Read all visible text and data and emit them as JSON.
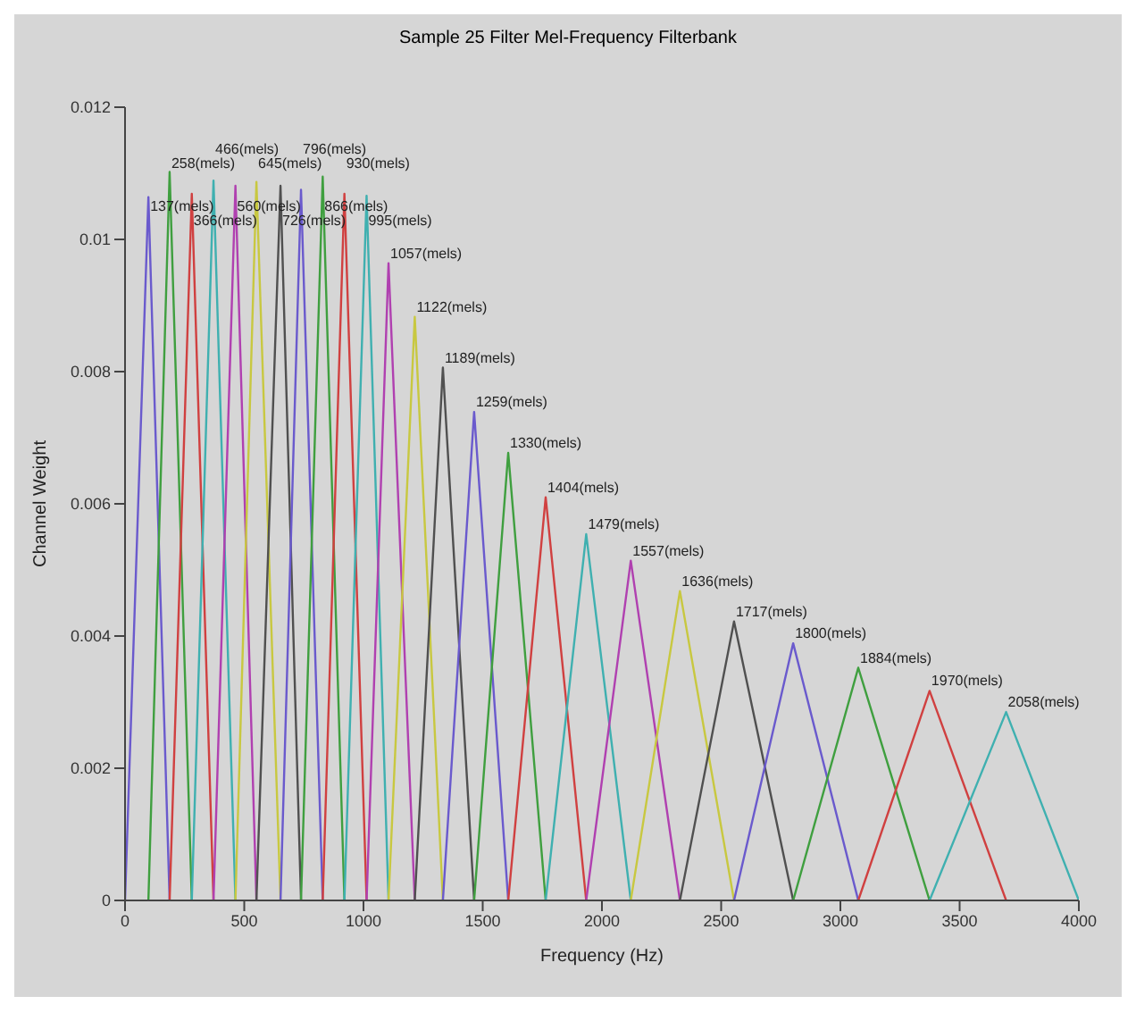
{
  "chart_data": {
    "type": "line",
    "title": "Sample 25 Filter Mel-Frequency Filterbank",
    "xlabel": "Frequency (Hz)",
    "ylabel": "Channel Weight",
    "xlim": [
      0,
      4000
    ],
    "xticks": [
      0,
      500,
      1000,
      1500,
      2000,
      2500,
      3000,
      3500,
      4000
    ],
    "ylim": [
      0,
      0.012
    ],
    "yticks": [
      0,
      0.002,
      0.004,
      0.006,
      0.008,
      0.01,
      0.012
    ],
    "series": [
      {
        "color": "#6a5acd",
        "x": [
          0,
          98,
          187
        ],
        "values": [
          0,
          0.01064,
          0
        ]
      },
      {
        "color": "#3f9f3f",
        "x": [
          98,
          187,
          280
        ],
        "values": [
          0,
          0.01102,
          0
        ]
      },
      {
        "color": "#d04040",
        "x": [
          187,
          280,
          371
        ],
        "values": [
          0,
          0.01069,
          0
        ]
      },
      {
        "color": "#3fb0b0",
        "x": [
          280,
          371,
          463
        ],
        "values": [
          0,
          0.01089,
          0
        ]
      },
      {
        "color": "#b040b0",
        "x": [
          371,
          463,
          551
        ],
        "values": [
          0,
          0.01081,
          0
        ]
      },
      {
        "color": "#c8c840",
        "x": [
          463,
          551,
          652
        ],
        "values": [
          0,
          0.01087,
          0
        ]
      },
      {
        "color": "#505050",
        "x": [
          551,
          652,
          738
        ],
        "values": [
          0,
          0.01081,
          0
        ]
      },
      {
        "color": "#6a5acd",
        "x": [
          652,
          738,
          829
        ],
        "values": [
          0,
          0.01075,
          0
        ]
      },
      {
        "color": "#3f9f3f",
        "x": [
          738,
          829,
          920
        ],
        "values": [
          0,
          0.01095,
          0
        ]
      },
      {
        "color": "#d04040",
        "x": [
          829,
          920,
          1013
        ],
        "values": [
          0,
          0.01069,
          0
        ]
      },
      {
        "color": "#3fb0b0",
        "x": [
          920,
          1013,
          1105
        ],
        "values": [
          0,
          0.01066,
          0
        ]
      },
      {
        "color": "#b040b0",
        "x": [
          1013,
          1105,
          1215
        ],
        "values": [
          0,
          0.00964,
          0
        ]
      },
      {
        "color": "#c8c840",
        "x": [
          1105,
          1215,
          1333
        ],
        "values": [
          0,
          0.00883,
          0
        ]
      },
      {
        "color": "#505050",
        "x": [
          1215,
          1333,
          1464
        ],
        "values": [
          0,
          0.00806,
          0
        ]
      },
      {
        "color": "#6a5acd",
        "x": [
          1333,
          1464,
          1607
        ],
        "values": [
          0,
          0.00739,
          0
        ]
      },
      {
        "color": "#3f9f3f",
        "x": [
          1464,
          1607,
          1764
        ],
        "values": [
          0,
          0.00677,
          0
        ]
      },
      {
        "color": "#d04040",
        "x": [
          1607,
          1764,
          1934
        ],
        "values": [
          0,
          0.0061,
          0
        ]
      },
      {
        "color": "#3fb0b0",
        "x": [
          1764,
          1934,
          2121
        ],
        "values": [
          0,
          0.00554,
          0
        ]
      },
      {
        "color": "#b040b0",
        "x": [
          1934,
          2121,
          2327
        ],
        "values": [
          0,
          0.00514,
          0
        ]
      },
      {
        "color": "#c8c840",
        "x": [
          2121,
          2327,
          2554
        ],
        "values": [
          0,
          0.00468,
          0
        ]
      },
      {
        "color": "#505050",
        "x": [
          2327,
          2554,
          2802
        ],
        "values": [
          0,
          0.00422,
          0
        ]
      },
      {
        "color": "#6a5acd",
        "x": [
          2554,
          2802,
          3075
        ],
        "values": [
          0,
          0.00389,
          0
        ]
      },
      {
        "color": "#3f9f3f",
        "x": [
          2802,
          3075,
          3374
        ],
        "values": [
          0,
          0.00352,
          0
        ]
      },
      {
        "color": "#d04040",
        "x": [
          3075,
          3374,
          3695
        ],
        "values": [
          0,
          0.00317,
          0
        ]
      },
      {
        "color": "#3fb0b0",
        "x": [
          3374,
          3695,
          4000
        ],
        "values": [
          0,
          0.00285,
          0
        ]
      }
    ],
    "annotations": [
      {
        "text": "137(mels)",
        "x": 98,
        "y": 0.01064
      },
      {
        "text": "258(mels)",
        "x": 187,
        "y": 0.01102
      },
      {
        "text": "366(mels)",
        "x": 280,
        "y": 0.01069
      },
      {
        "text": "466(mels)",
        "x": 371,
        "y": 0.01089
      },
      {
        "text": "560(mels)",
        "x": 463,
        "y": 0.01081
      },
      {
        "text": "645(mels)",
        "x": 551,
        "y": 0.01087
      },
      {
        "text": "726(mels)",
        "x": 652,
        "y": 0.01081
      },
      {
        "text": "796(mels)",
        "x": 738,
        "y": 0.01075
      },
      {
        "text": "866(mels)",
        "x": 829,
        "y": 0.01095
      },
      {
        "text": "930(mels)",
        "x": 920,
        "y": 0.01069
      },
      {
        "text": "995(mels)",
        "x": 1013,
        "y": 0.01066
      },
      {
        "text": "1057(mels)",
        "x": 1105,
        "y": 0.00964
      },
      {
        "text": "1122(mels)",
        "x": 1215,
        "y": 0.00883
      },
      {
        "text": "1189(mels)",
        "x": 1333,
        "y": 0.00806
      },
      {
        "text": "1259(mels)",
        "x": 1464,
        "y": 0.00739
      },
      {
        "text": "1330(mels)",
        "x": 1607,
        "y": 0.00677
      },
      {
        "text": "1404(mels)",
        "x": 1764,
        "y": 0.0061
      },
      {
        "text": "1479(mels)",
        "x": 1934,
        "y": 0.00554
      },
      {
        "text": "1557(mels)",
        "x": 2121,
        "y": 0.00514
      },
      {
        "text": "1636(mels)",
        "x": 2327,
        "y": 0.00468
      },
      {
        "text": "1717(mels)",
        "x": 2554,
        "y": 0.00422
      },
      {
        "text": "1800(mels)",
        "x": 2802,
        "y": 0.00389
      },
      {
        "text": "1884(mels)",
        "x": 3075,
        "y": 0.00352
      },
      {
        "text": "1970(mels)",
        "x": 3374,
        "y": 0.00317
      },
      {
        "text": "2058(mels)",
        "x": 3695,
        "y": 0.00285
      }
    ]
  }
}
